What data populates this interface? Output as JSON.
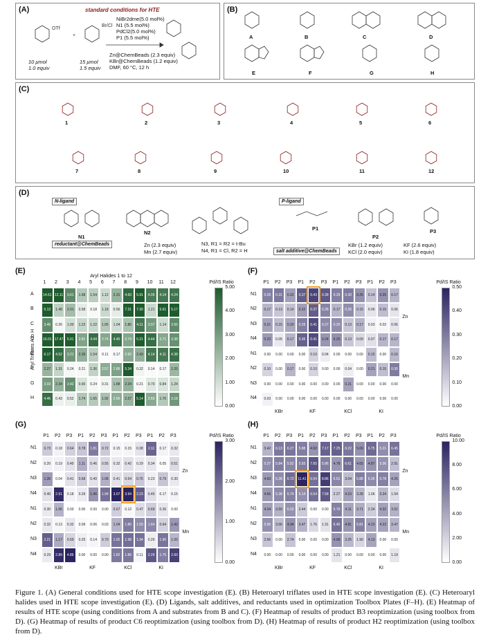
{
  "panelA": {
    "label": "(A)",
    "title": "standard conditions for HTE",
    "conditions": [
      "NiBr2dme(5.0 mol%)",
      "N1 (5.5 mol%)",
      "PdCl2(5.0 mol%)",
      "P1 (5.5 mol%)",
      "Zn@ChemBeads (2.3 equiv)",
      "KBr@ChemBeads (1.2 equiv)",
      "DMF, 60 °C, 12 h"
    ],
    "amt1": "10 μmol",
    "eq1": "1.0 equiv",
    "amt2": "15 μmol",
    "eq2": "1.5 equiv"
  },
  "panelB": {
    "label": "(B)",
    "letters": [
      "A",
      "B",
      "C",
      "D",
      "E",
      "F",
      "G",
      "H"
    ]
  },
  "panelC": {
    "label": "(C)",
    "numbers": [
      "1",
      "2",
      "3",
      "4",
      "5",
      "6",
      "7",
      "8",
      "9",
      "10",
      "11",
      "12"
    ]
  },
  "panelD": {
    "label": "(D)",
    "nligand": "N-ligand",
    "pligand": "P-ligand",
    "reductant": "reductant@ChemBeads",
    "salt": "salt additive@ChemBeads",
    "ligands": [
      "N1",
      "N2",
      "N3, R1 = R2 = t-Bu",
      "N4, R1 = Cl, R2 = H",
      "P1",
      "P2",
      "P3"
    ],
    "zn": "Zn (2.3 equiv)",
    "mn": "Mn (2.7 equiv)",
    "salts": [
      "KBr (1.2 equiv)",
      "KF (2.6 equiv)",
      "KCl (2.0 equiv)",
      "KI (1.8 equiv)"
    ]
  },
  "panelE": {
    "label": "(E)",
    "title": "Aryl Halides 1 to 12",
    "ylabel": "Aryl Triflates A to H",
    "cbar": "Pd/IS Ratio",
    "cols": [
      "1",
      "2",
      "3",
      "4",
      "5",
      "6",
      "7",
      "8",
      "9",
      "10",
      "11",
      "12"
    ],
    "rows": [
      "A",
      "B",
      "C",
      "D",
      "E",
      "F",
      "G",
      "H"
    ],
    "ticks": [
      "5.00",
      "4.00",
      "3.00",
      "2.00",
      "1.00",
      "0.00"
    ],
    "values": [
      [
        14.61,
        12.11,
        3.61,
        1.68,
        1.54,
        1.12,
        2.31,
        4.6,
        5.91,
        4.05,
        4.14,
        4.24
      ],
      [
        5.13,
        1.48,
        2.01,
        0.58,
        0.18,
        1.18,
        0.56,
        7.31,
        7.3,
        1.21,
        5.61,
        5.17
      ],
      [
        3.46,
        0.26,
        1.0,
        1.22,
        1.22,
        1.65,
        1.04,
        1.86,
        4.11,
        3.07,
        1.14,
        3.56
      ],
      [
        16.01,
        17.47,
        5.01,
        2.81,
        4.44,
        2.74,
        4.4,
        2.74,
        5.21,
        4.44,
        2.71,
        3.38
      ],
      [
        6.17,
        4.52,
        3.21,
        2.39,
        1.54,
        0.11,
        0.17,
        2.6,
        2.43,
        4.14,
        4.11,
        4.38
      ],
      [
        2.27,
        1.31,
        0.24,
        0.21,
        1.36,
        2.57,
        2.86,
        5.34,
        0.32,
        0.14,
        0.17,
        2.2
      ],
      [
        3.03,
        2.34,
        3.42,
        0.9,
        0.24,
        0.31,
        1.88,
        2.34,
        0.21,
        0.7,
        0.84,
        1.24
      ],
      [
        4.46,
        0.43,
        0.52,
        1.74,
        1.65,
        1.92,
        2.56,
        2.27,
        5.14,
        2.65,
        1.7,
        3.18
      ]
    ]
  },
  "panelF": {
    "label": "(F)",
    "cbar": "Pd/IS Ratio",
    "ticks": [
      "0.50",
      "0.40",
      "0.30",
      "0.20",
      "0.10",
      "0.00"
    ],
    "cols": [
      "P1",
      "P2",
      "P3",
      "P1",
      "P2",
      "P3",
      "P1",
      "P2",
      "P3",
      "P1",
      "P2",
      "P3"
    ],
    "rows": [
      "N1",
      "N2",
      "N3",
      "N4",
      "N1",
      "N2",
      "N3",
      "N4"
    ],
    "groups": [
      "KBr",
      "KF",
      "KCl",
      "KI"
    ],
    "side": [
      "Zn",
      "Mn"
    ],
    "values": [
      [
        0.29,
        0.31,
        0.22,
        0.37,
        0.43,
        0.38,
        0.29,
        0.3,
        0.25,
        0.14,
        0.25,
        0.17
      ],
      [
        0.17,
        0.13,
        0.14,
        0.22,
        0.37,
        0.28,
        0.17,
        0.26,
        0.15,
        0.06,
        0.15,
        0.06
      ],
      [
        0.21,
        0.15,
        0.2,
        0.29,
        0.41,
        0.27,
        0.26,
        0.13,
        0.17,
        0.03,
        0.02,
        0.06
      ],
      [
        0.23,
        0.05,
        0.17,
        0.36,
        0.41,
        0.24,
        0.25,
        0.13,
        0.09,
        0.07,
        0.17,
        0.17
      ],
      [
        0.0,
        0.0,
        0.0,
        0.0,
        0.1,
        0.04,
        0.0,
        0.0,
        0.0,
        0.15,
        0.0,
        0.16
      ],
      [
        0.1,
        0.0,
        0.17,
        0.0,
        0.1,
        0.0,
        0.0,
        0.04,
        0.0,
        0.21,
        0.15,
        0.3
      ],
      [
        0.0,
        0.0,
        0.0,
        0.0,
        0.0,
        0.0,
        0.0,
        0.21,
        0.0,
        0.0,
        0.0,
        0.0
      ],
      [
        0.03,
        0.0,
        0.0,
        0.0,
        0.0,
        0.0,
        0.0,
        0.0,
        0.0,
        0.0,
        0.0,
        0.0
      ]
    ]
  },
  "panelG": {
    "label": "(G)",
    "cbar": "Pd/IS Ratio",
    "ticks": [
      "3.00",
      "2.00",
      "1.00",
      "0.00"
    ],
    "cols": [
      "P1",
      "P2",
      "P3",
      "P1",
      "P2",
      "P3",
      "P1",
      "P2",
      "P3",
      "P1",
      "P2",
      "P3"
    ],
    "rows": [
      "N1",
      "N2",
      "N3",
      "N4",
      "N1",
      "N2",
      "N3",
      "N4"
    ],
    "groups": [
      "KBr",
      "KF",
      "KCl",
      "KI"
    ],
    "side": [
      "Zn",
      "Mn"
    ],
    "values": [
      [
        0.73,
        0.18,
        0.64,
        0.78,
        1.81,
        0.72,
        0.15,
        0.15,
        0.38,
        2.11,
        0.17,
        0.32
      ],
      [
        0.2,
        0.19,
        0.4,
        1.11,
        0.46,
        0.55,
        0.32,
        0.42,
        0.29,
        0.34,
        0.05,
        0.51
      ],
      [
        1.36,
        0.04,
        0.41,
        0.68,
        0.4,
        1.08,
        0.41,
        0.54,
        0.75,
        0.23,
        0.79,
        0.3
      ],
      [
        0.4,
        2.91,
        0.18,
        0.29,
        1.46,
        1.94,
        3.07,
        3.94,
        2.23,
        0.45,
        0.17,
        0.15
      ],
      [
        0.3,
        1.06,
        0.0,
        0.0,
        0.0,
        0.0,
        0.67,
        0.12,
        0.47,
        0.69,
        0.36,
        0.0
      ],
      [
        0.32,
        0.13,
        0.32,
        0.09,
        0.06,
        0.03,
        1.04,
        1.8,
        1.59,
        1.64,
        0.64,
        1.42
      ],
      [
        2.21,
        1.17,
        0.59,
        0.25,
        0.14,
        0.7,
        1.92,
        1.98,
        1.94,
        0.26,
        1.9,
        1.0
      ],
      [
        0.29,
        2.89,
        4.86,
        0.0,
        0.0,
        0.0,
        1.82,
        1.86,
        0.11,
        2.29,
        1.75,
        2.6
      ]
    ]
  },
  "panelH": {
    "label": "(H)",
    "cbar": "Pd/IS Ratio",
    "ticks": [
      "10.00",
      "8.00",
      "6.00",
      "4.00",
      "2.00",
      "0.00"
    ],
    "cols": [
      "P1",
      "P2",
      "P3",
      "P1",
      "P2",
      "P3",
      "P1",
      "P2",
      "P3",
      "P1",
      "P2",
      "P3"
    ],
    "rows": [
      "N1",
      "N2",
      "N3",
      "N4",
      "N1",
      "N2",
      "N3",
      "N4"
    ],
    "groups": [
      "KBr",
      "KF",
      "KCl",
      "KI"
    ],
    "side": [
      "Zn",
      "Mn"
    ],
    "values": [
      [
        3.42,
        6.13,
        6.27,
        5.88,
        4.92,
        7.17,
        7.25,
        6.22,
        5.0,
        6.75,
        5.21,
        6.45
      ],
      [
        5.27,
        5.84,
        5.52,
        5.93,
        7.65,
        5.86,
        4.78,
        6.61,
        4.65,
        4.87,
        5.06,
        2.91
      ],
      [
        4.63,
        5.28,
        6.72,
        11.41,
        6.54,
        8.86,
        5.51,
        3.04,
        5.88,
        5.36,
        5.78,
        4.26
      ],
      [
        4.66,
        5.38,
        5.74,
        5.14,
        6.54,
        7.58,
        2.27,
        4.23,
        3.28,
        1.06,
        3.34,
        1.54
      ],
      [
        4.34,
        3.5,
        5.02,
        2.44,
        0.0,
        0.0,
        5.79,
        4.11,
        3.71,
        2.34,
        4.32,
        3.52
      ],
      [
        5.06,
        3.0,
        4.94,
        3.47,
        1.76,
        1.31,
        6.45,
        4.81,
        5.81,
        4.23,
        4.23,
        3.47
      ],
      [
        2.66,
        0.0,
        2.74,
        0.0,
        0.0,
        0.0,
        4.96,
        3.25,
        1.9,
        4.13,
        0.0,
        0.0
      ],
      [
        0.0,
        0.0,
        0.0,
        0.0,
        0.0,
        0.0,
        1.21,
        0.0,
        0.0,
        0.0,
        0.0,
        1.19
      ]
    ]
  },
  "caption": "Figure 1. (A) General conditions used for HTE scope investigation (E). (B) Heteroaryl triflates used in HTE scope investigation (E). (C) Heteroaryl halides used in HTE scope investigation (E). (D) Ligands, salt additives, and reductants used in optimization Toolbox Plates (F–H). (E) Heatmap of results of HTE scope (using conditions from A and substrates from B and C). (F) Heatmap of results of product B3 reoptimization (using toolbox from D). (G) Heatmap of results of product C6 reoptimization (using toolbox from D). (H) Heatmap of results of product H2 reoptimization (using toolbox from D).",
  "colors": {
    "green": "#1e5c2e",
    "purple": "#2b2461",
    "highlight": "#f0a020",
    "chem": "#8b1a1a"
  }
}
